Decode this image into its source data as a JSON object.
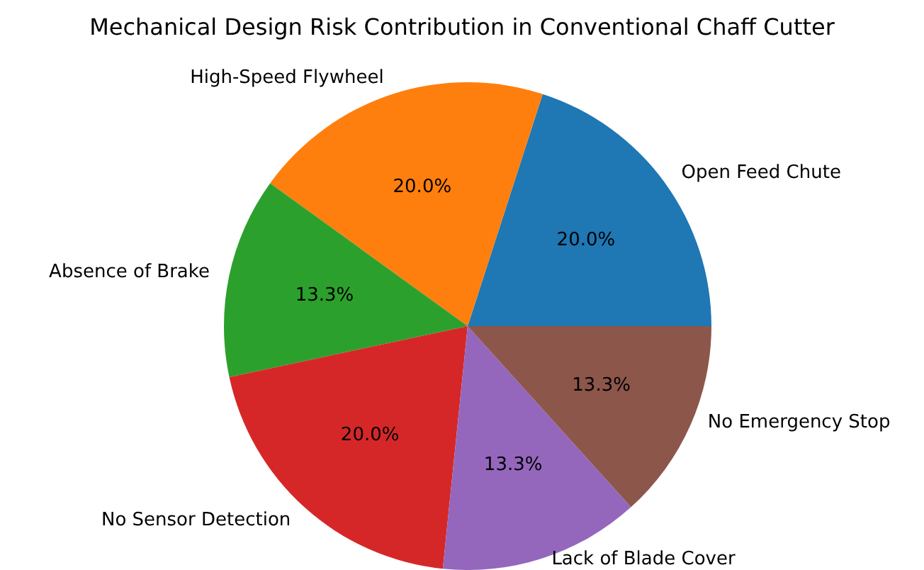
{
  "chart_data": {
    "type": "pie",
    "title": "Mechanical Design Risk Contribution in Conventional Chaff Cutter",
    "categories": [
      "Open Feed Chute",
      "High-Speed Flywheel",
      "Absence of Brake",
      "No Sensor Detection",
      "Lack of Blade Cover",
      "No Emergency Stop"
    ],
    "values": [
      20,
      20,
      13.3,
      20,
      13.3,
      13.3
    ],
    "value_labels": [
      "20.0%",
      "20.0%",
      "13.3%",
      "20.0%",
      "13.3%",
      "13.3%"
    ],
    "colors": [
      "#1f77b4",
      "#ff7f0e",
      "#2ca02c",
      "#d62728",
      "#9467bd",
      "#8c564b"
    ],
    "legend": false
  }
}
